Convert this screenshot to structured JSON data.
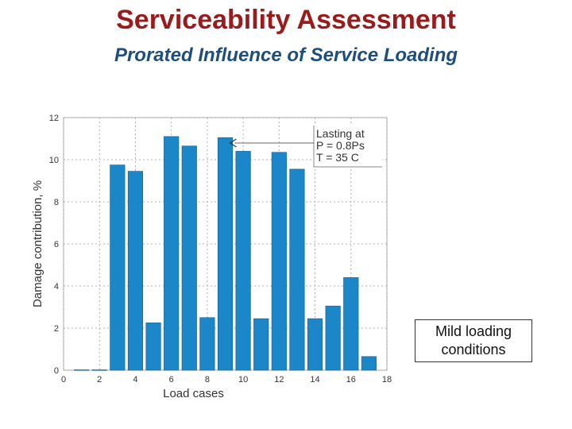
{
  "header": {
    "title": "Serviceability Assessment",
    "subtitle": "Prorated Influence of Service Loading"
  },
  "note": {
    "text": "Mild loading\nconditions"
  },
  "colors": {
    "bar": "#1b87c9",
    "bar_edge": "#0d5f93",
    "title": "#9a1b1b",
    "subtitle": "#1f4e79"
  },
  "chart_data": {
    "type": "bar",
    "xlabel": "Load cases",
    "ylabel": "Damage contribution, %",
    "xlim": [
      0,
      18
    ],
    "ylim": [
      0,
      12
    ],
    "xticks": [
      0,
      2,
      4,
      6,
      8,
      10,
      12,
      14,
      16,
      18
    ],
    "yticks": [
      0,
      2,
      4,
      6,
      8,
      10,
      12
    ],
    "grid": true,
    "x": [
      1,
      2,
      3,
      4,
      5,
      6,
      7,
      8,
      9,
      10,
      11,
      12,
      13,
      14,
      15,
      16,
      17
    ],
    "values": [
      0.02,
      0.02,
      9.75,
      9.45,
      2.25,
      11.1,
      10.65,
      2.5,
      11.05,
      10.4,
      2.45,
      10.35,
      9.55,
      2.45,
      3.05,
      4.4,
      0.65
    ],
    "annotation": {
      "lines": [
        "Lasting at",
        "P = 0.8Ps",
        "T = 35 C"
      ],
      "points_to_x": 9
    }
  }
}
